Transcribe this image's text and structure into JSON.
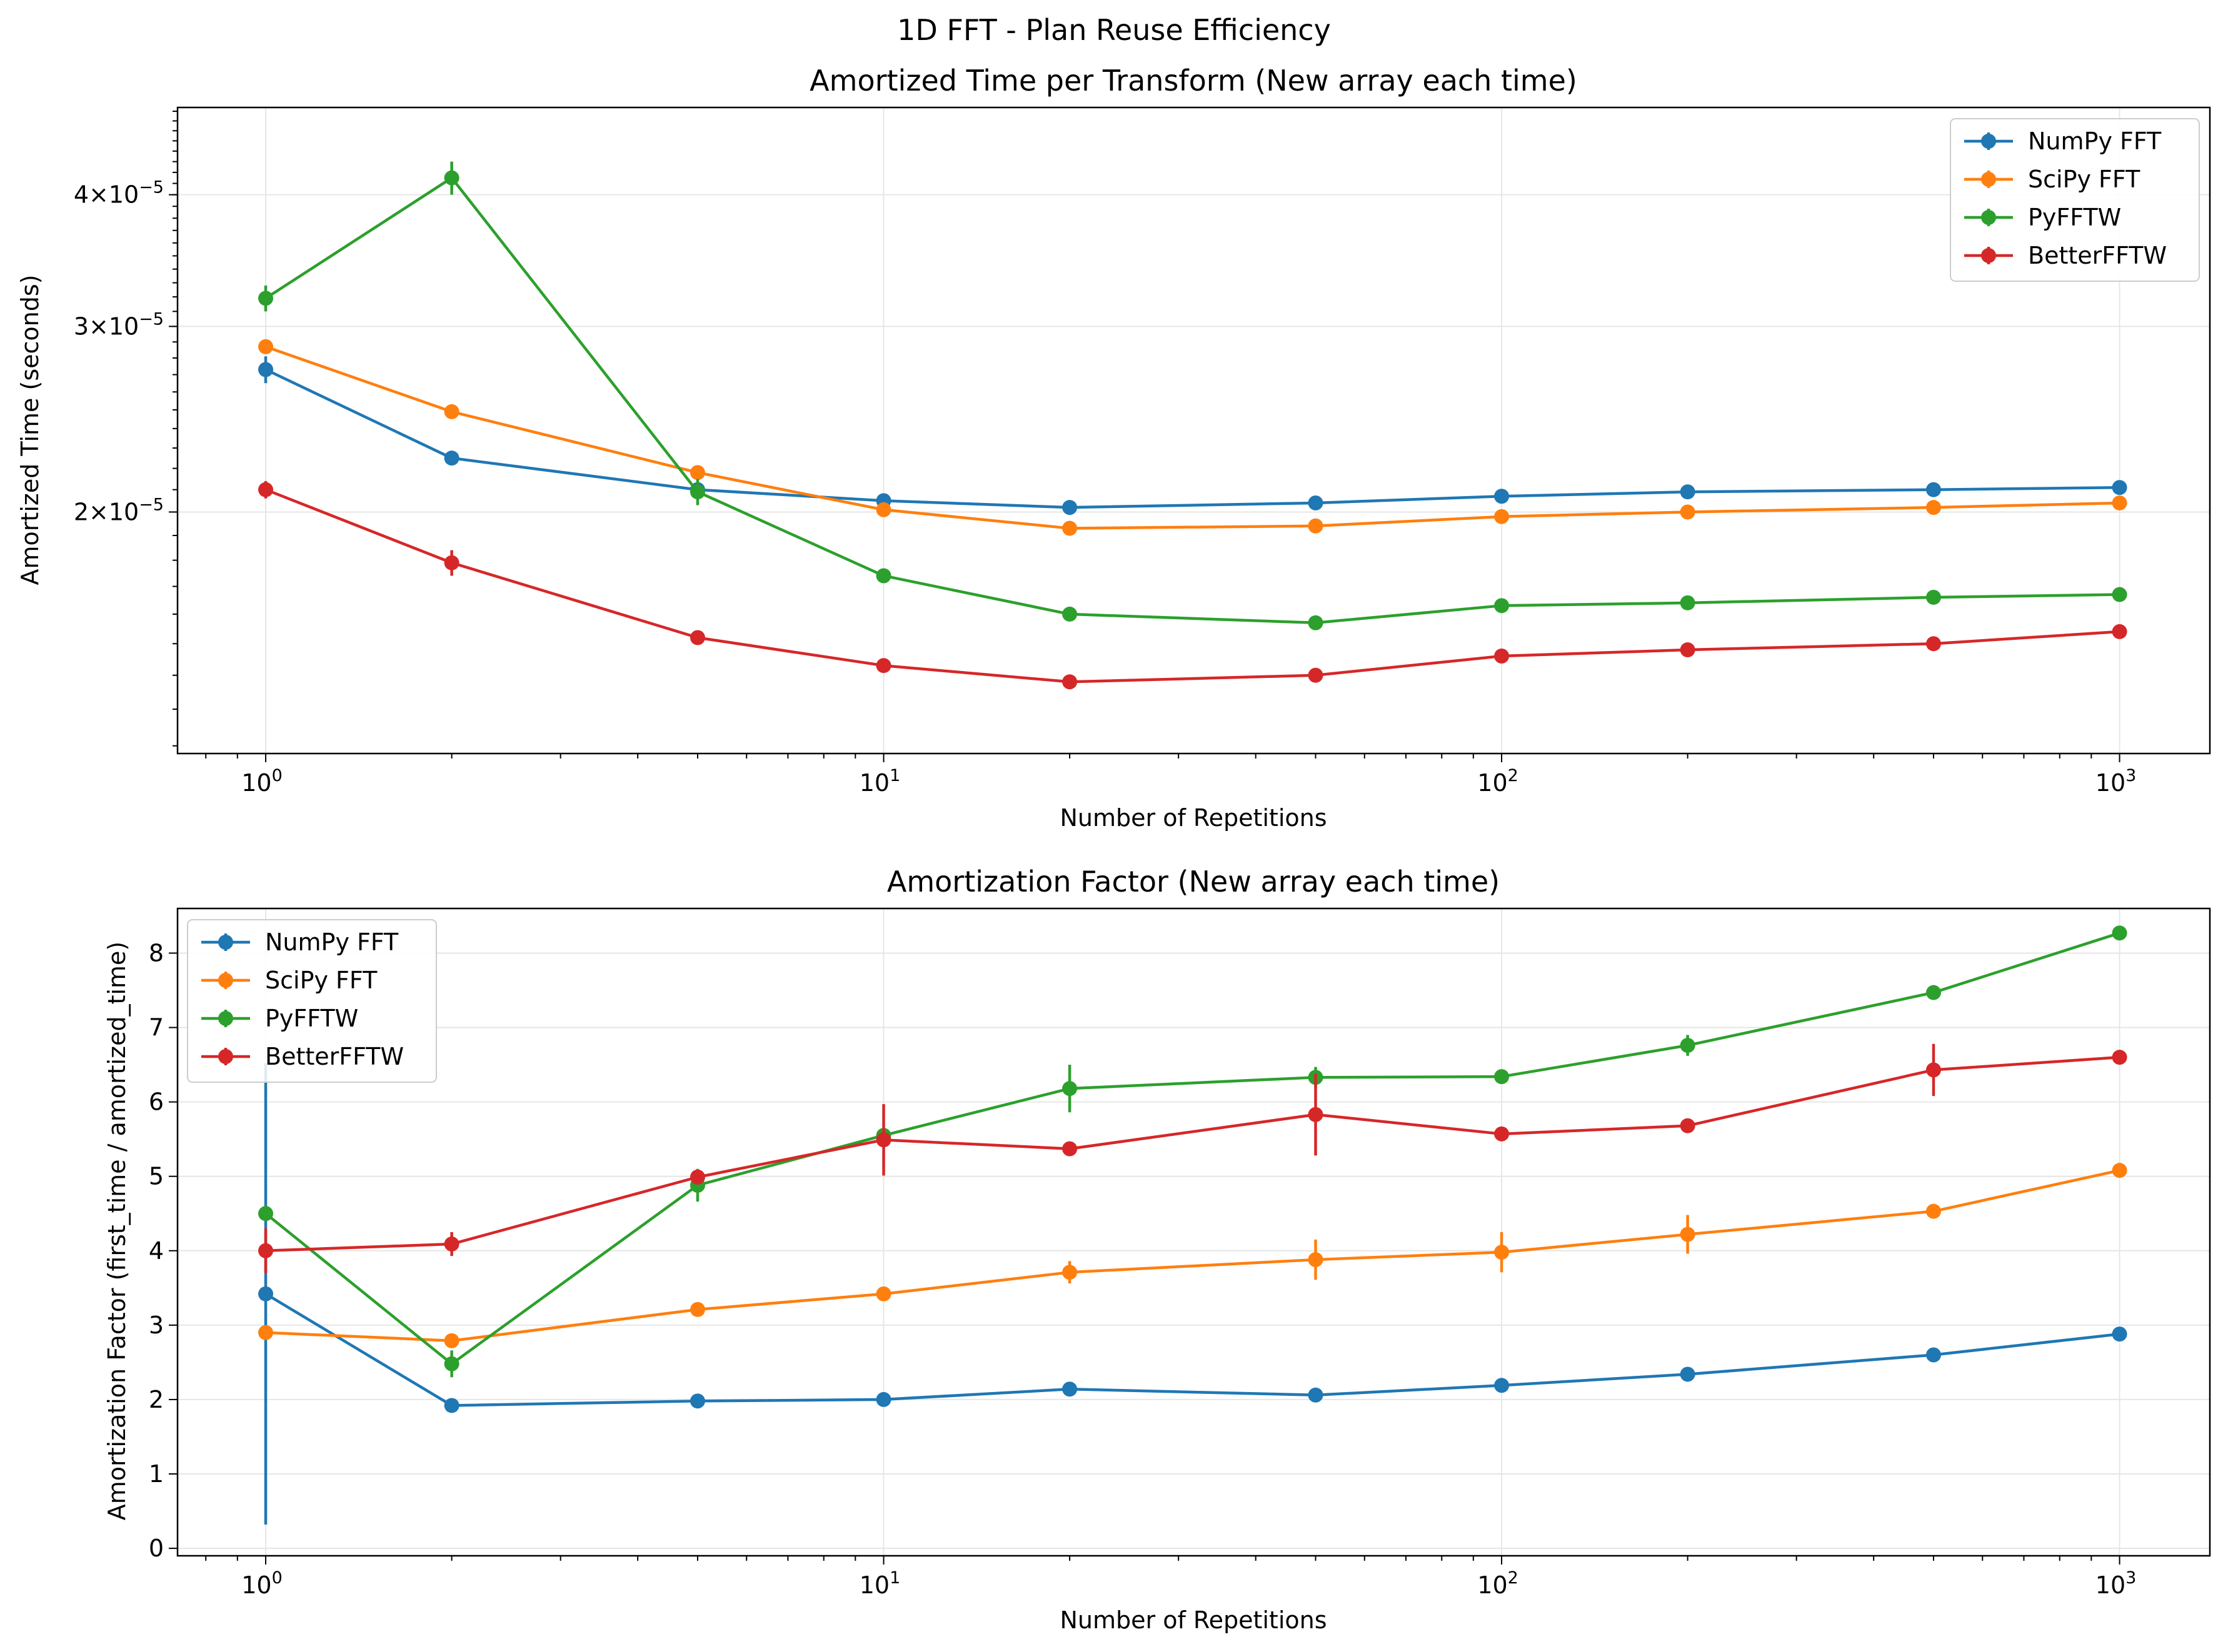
{
  "figure_title": "1D FFT - Plan Reuse Efficiency",
  "colors": {
    "NumPy FFT": "#1f77b4",
    "SciPy FFT": "#ff7f0e",
    "PyFFTW": "#2ca02c",
    "BetterFFTW": "#d62728",
    "grid": "#e6e6e6"
  },
  "chart_data": [
    {
      "type": "line",
      "title": "Amortized Time per Transform (New array each time)",
      "xlabel": "Number of Repetitions",
      "ylabel": "Amortized Time (seconds)",
      "xscale": "log",
      "yscale": "log",
      "xlim": [
        0.72,
        1400
      ],
      "ylim": [
        1.18e-05,
        4.84e-05
      ],
      "x_ticks": [
        {
          "value": 1,
          "base": "10",
          "exp": "0"
        },
        {
          "value": 10,
          "base": "10",
          "exp": "1"
        },
        {
          "value": 100,
          "base": "10",
          "exp": "2"
        },
        {
          "value": 1000,
          "base": "10",
          "exp": "3"
        }
      ],
      "y_ticks": [
        {
          "value": 2e-05,
          "mantissa": "2",
          "times": "×",
          "base": "10",
          "exp": "−5"
        },
        {
          "value": 3e-05,
          "mantissa": "3",
          "times": "×",
          "base": "10",
          "exp": "−5"
        },
        {
          "value": 4e-05,
          "mantissa": "4",
          "times": "×",
          "base": "10",
          "exp": "−5"
        }
      ],
      "grid": true,
      "legend_position": "upper right",
      "x": [
        1,
        2,
        5,
        10,
        20,
        50,
        100,
        200,
        500,
        1000
      ],
      "series": [
        {
          "name": "NumPy FFT",
          "values": [
            2.73e-05,
            2.25e-05,
            2.1e-05,
            2.05e-05,
            2.02e-05,
            2.04e-05,
            2.07e-05,
            2.09e-05,
            2.1e-05,
            2.11e-05
          ],
          "errors": [
            8e-07,
            2e-07,
            1e-07,
            1e-07,
            1e-07,
            1e-07,
            1e-07,
            1e-07,
            1e-07,
            1e-07
          ]
        },
        {
          "name": "SciPy FFT",
          "values": [
            2.87e-05,
            2.49e-05,
            2.18e-05,
            2.01e-05,
            1.93e-05,
            1.94e-05,
            1.98e-05,
            2e-05,
            2.02e-05,
            2.04e-05
          ],
          "errors": [
            2e-07,
            2e-07,
            1e-07,
            1e-07,
            1e-07,
            1e-07,
            1e-07,
            1e-07,
            1e-07,
            1e-07
          ]
        },
        {
          "name": "PyFFTW",
          "values": [
            3.19e-05,
            4.15e-05,
            2.09e-05,
            1.74e-05,
            1.6e-05,
            1.57e-05,
            1.63e-05,
            1.64e-05,
            1.66e-05,
            1.67e-05
          ],
          "errors": [
            9e-07,
            1.5e-06,
            6e-07,
            1e-07,
            1e-07,
            1e-07,
            1e-07,
            1e-07,
            1e-07,
            1e-07
          ]
        },
        {
          "name": "BetterFFTW",
          "values": [
            2.1e-05,
            1.79e-05,
            1.52e-05,
            1.43e-05,
            1.38e-05,
            1.4e-05,
            1.46e-05,
            1.48e-05,
            1.5e-05,
            1.54e-05
          ],
          "errors": [
            4e-07,
            5e-07,
            1e-07,
            1e-07,
            1e-07,
            1e-07,
            1e-07,
            1e-07,
            1e-07,
            1e-07
          ]
        }
      ]
    },
    {
      "type": "line",
      "title": "Amortization Factor (New array each time)",
      "xlabel": "Number of Repetitions",
      "ylabel": "Amortization Factor (first_time / amortized_time)",
      "xscale": "log",
      "yscale": "linear",
      "xlim": [
        0.72,
        1400
      ],
      "ylim": [
        -0.1,
        8.6
      ],
      "x_ticks": [
        {
          "value": 1,
          "base": "10",
          "exp": "0"
        },
        {
          "value": 10,
          "base": "10",
          "exp": "1"
        },
        {
          "value": 100,
          "base": "10",
          "exp": "2"
        },
        {
          "value": 1000,
          "base": "10",
          "exp": "3"
        }
      ],
      "y_ticks": [
        {
          "value": 0,
          "label": "0"
        },
        {
          "value": 1,
          "label": "1"
        },
        {
          "value": 2,
          "label": "2"
        },
        {
          "value": 3,
          "label": "3"
        },
        {
          "value": 4,
          "label": "4"
        },
        {
          "value": 5,
          "label": "5"
        },
        {
          "value": 6,
          "label": "6"
        },
        {
          "value": 7,
          "label": "7"
        },
        {
          "value": 8,
          "label": "8"
        }
      ],
      "grid": true,
      "legend_position": "upper left",
      "x": [
        1,
        2,
        5,
        10,
        20,
        50,
        100,
        200,
        500,
        1000
      ],
      "series": [
        {
          "name": "NumPy FFT",
          "values": [
            3.42,
            1.92,
            1.98,
            2.0,
            2.14,
            2.06,
            2.19,
            2.34,
            2.6,
            2.88
          ],
          "errors": [
            3.1,
            0.04,
            0.04,
            0.04,
            0.05,
            0.05,
            0.05,
            0.05,
            0.05,
            0.06
          ]
        },
        {
          "name": "SciPy FFT",
          "values": [
            2.9,
            2.79,
            3.21,
            3.42,
            3.71,
            3.88,
            3.98,
            4.22,
            4.53,
            5.08
          ],
          "errors": [
            0.07,
            0.06,
            0.06,
            0.06,
            0.15,
            0.27,
            0.27,
            0.26,
            0.06,
            0.1
          ]
        },
        {
          "name": "PyFFTW",
          "values": [
            4.5,
            2.48,
            4.88,
            5.55,
            6.18,
            6.33,
            6.34,
            6.76,
            7.47,
            8.27
          ],
          "errors": [
            0.1,
            0.18,
            0.22,
            0.08,
            0.32,
            0.14,
            0.06,
            0.14,
            0.06,
            0.08
          ]
        },
        {
          "name": "BetterFFTW",
          "values": [
            4.0,
            4.09,
            4.99,
            5.49,
            5.37,
            5.83,
            5.57,
            5.68,
            6.43,
            6.6
          ],
          "errors": [
            0.3,
            0.16,
            0.1,
            0.48,
            0.06,
            0.55,
            0.06,
            0.06,
            0.35,
            0.06
          ]
        }
      ]
    }
  ]
}
